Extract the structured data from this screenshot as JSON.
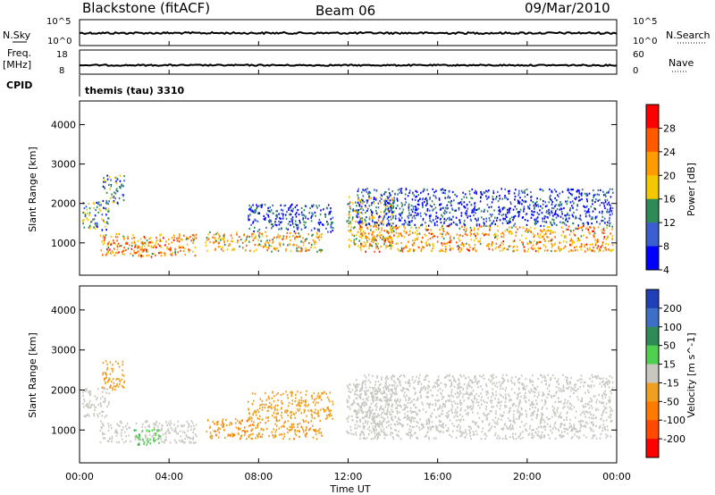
{
  "header": {
    "station": "Blackstone (fitACF)",
    "beam": "Beam 06",
    "date": "09/Mar/2010"
  },
  "top_panels": {
    "nsky_label": "N.Sky",
    "nsky_ticks": [
      "10^5",
      "10^0"
    ],
    "nsearch_label": "N.Search",
    "nsearch_ticks": [
      "10^5",
      "10^0"
    ],
    "freq_label": "Freq.",
    "freq_unit": "[MHz]",
    "freq_ticks": [
      "18",
      "8"
    ],
    "nave_label": "Nave",
    "nave_ticks": [
      "60",
      "0"
    ],
    "cpid_label": "CPID",
    "cpid_value": "themis (tau) 3310"
  },
  "panels": {
    "power": {
      "ylabel": "Slant Range [km]",
      "colorbar_label": "Power [dB]",
      "colorbar_ticks": [
        "28",
        "24",
        "20",
        "16",
        "12",
        "8",
        "4"
      ],
      "colorbar_colors": [
        "#ff0000",
        "#ff5a00",
        "#ff9c00",
        "#f3c800",
        "#2e8b57",
        "#3c5fcf",
        "#0000ff"
      ]
    },
    "velocity": {
      "ylabel": "Slant Range [km]",
      "colorbar_label": "Velocity [m s^-1]",
      "colorbar_ticks": [
        "200",
        "100",
        "50",
        "15",
        "-15",
        "-50",
        "-100",
        "-200"
      ],
      "colorbar_colors": [
        "#2140b8",
        "#3e6fc8",
        "#2e8b57",
        "#4fd04f",
        "#c8c8c0",
        "#f0a020",
        "#ff7a00",
        "#ff4a00",
        "#ff0000"
      ]
    }
  },
  "x_axis": {
    "label": "Time UT",
    "ticks": [
      "00:00",
      "04:00",
      "08:00",
      "12:00",
      "16:00",
      "20:00",
      "00:00"
    ]
  },
  "y_axis": {
    "ticks": [
      "4000",
      "3000",
      "2000",
      "1000"
    ]
  },
  "chart_data": {
    "type": "heatmap",
    "x_range_hours": [
      0,
      24
    ],
    "y_range_km": [
      180,
      4600
    ],
    "scatter_regions": [
      {
        "name": "early-upper",
        "t": [
          0.1,
          1.3
        ],
        "r": [
          1350,
          2100
        ],
        "power_db": 14,
        "velocity": 0
      },
      {
        "name": "early-plume",
        "t": [
          1.0,
          2.0
        ],
        "r": [
          2000,
          2750
        ],
        "power_db": 12,
        "velocity": -40
      },
      {
        "name": "band-1",
        "t": [
          0.9,
          5.2
        ],
        "r": [
          700,
          1250
        ],
        "power_db": 22,
        "velocity": 0
      },
      {
        "name": "band-1-green",
        "t": [
          2.4,
          3.6
        ],
        "r": [
          650,
          1050
        ],
        "power_db": 24,
        "velocity": 40
      },
      {
        "name": "band-2",
        "t": [
          5.6,
          10.8
        ],
        "r": [
          800,
          1300
        ],
        "power_db": 20,
        "velocity": -45
      },
      {
        "name": "rising-arc",
        "t": [
          7.5,
          11.3
        ],
        "r": [
          1300,
          2000
        ],
        "power_db": 8,
        "velocity": -30
      },
      {
        "name": "post-12-wedge",
        "t": [
          11.9,
          14.0
        ],
        "r": [
          900,
          2200
        ],
        "power_db": 18,
        "velocity": 0
      },
      {
        "name": "band-3",
        "t": [
          12.5,
          23.8
        ],
        "r": [
          800,
          1450
        ],
        "power_db": 22,
        "velocity": 0
      },
      {
        "name": "band-3-upper",
        "t": [
          12.3,
          23.8
        ],
        "r": [
          1450,
          2400
        ],
        "power_db": 8,
        "velocity": 0
      }
    ]
  }
}
